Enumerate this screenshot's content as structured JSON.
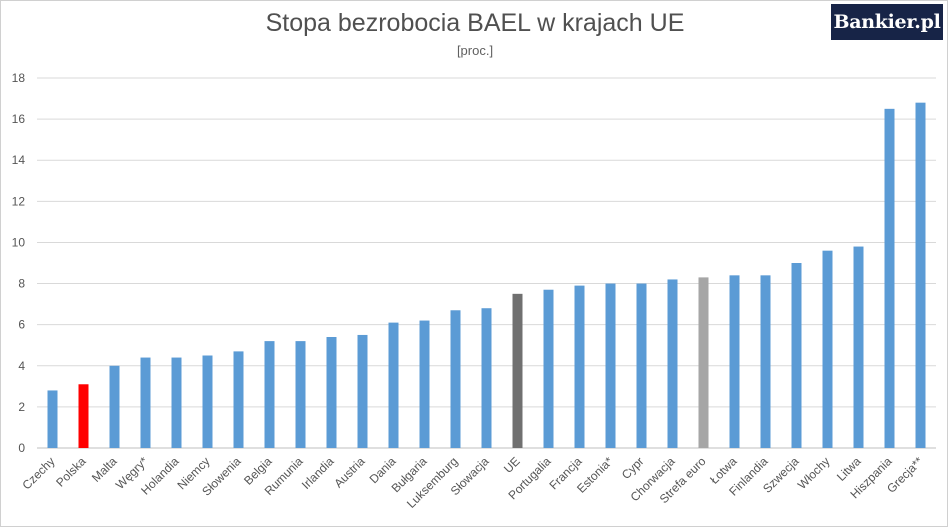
{
  "brand": {
    "logo_text": "Bankier.pl"
  },
  "chart_data": {
    "type": "bar",
    "title": "Stopa bezrobocia BAEL w krajach UE",
    "subtitle": "[proc.]",
    "xlabel": "",
    "ylabel": "",
    "ylim": [
      0,
      18
    ],
    "yticks": [
      0,
      2,
      4,
      6,
      8,
      10,
      12,
      14,
      16,
      18
    ],
    "grid": true,
    "legend": "none",
    "categories": [
      "Czechy",
      "Polska",
      "Malta",
      "Węgry*",
      "Holandia",
      "Niemcy",
      "Słowenia",
      "Belgia",
      "Rumunia",
      "Irlandia",
      "Austria",
      "Dania",
      "Bułgaria",
      "Luksemburg",
      "Słowacja",
      "UE",
      "Portugalia",
      "Francja",
      "Estonia*",
      "Cypr",
      "Chorwacja",
      "Strefa euro",
      "Łotwa",
      "Finlandia",
      "Szwecja",
      "Włochy",
      "Litwa",
      "Hiszpania",
      "Grecja**"
    ],
    "values": [
      2.8,
      3.1,
      4.0,
      4.4,
      4.4,
      4.5,
      4.7,
      5.2,
      5.2,
      5.4,
      5.5,
      6.1,
      6.2,
      6.7,
      6.8,
      7.5,
      7.7,
      7.9,
      8.0,
      8.0,
      8.2,
      8.3,
      8.4,
      8.4,
      9.0,
      9.6,
      9.8,
      16.5,
      16.8
    ],
    "colors": {
      "default": "#5b9bd5",
      "Polska": "#ff0000",
      "UE": "#707070",
      "Strefa euro": "#a6a6a6"
    }
  }
}
